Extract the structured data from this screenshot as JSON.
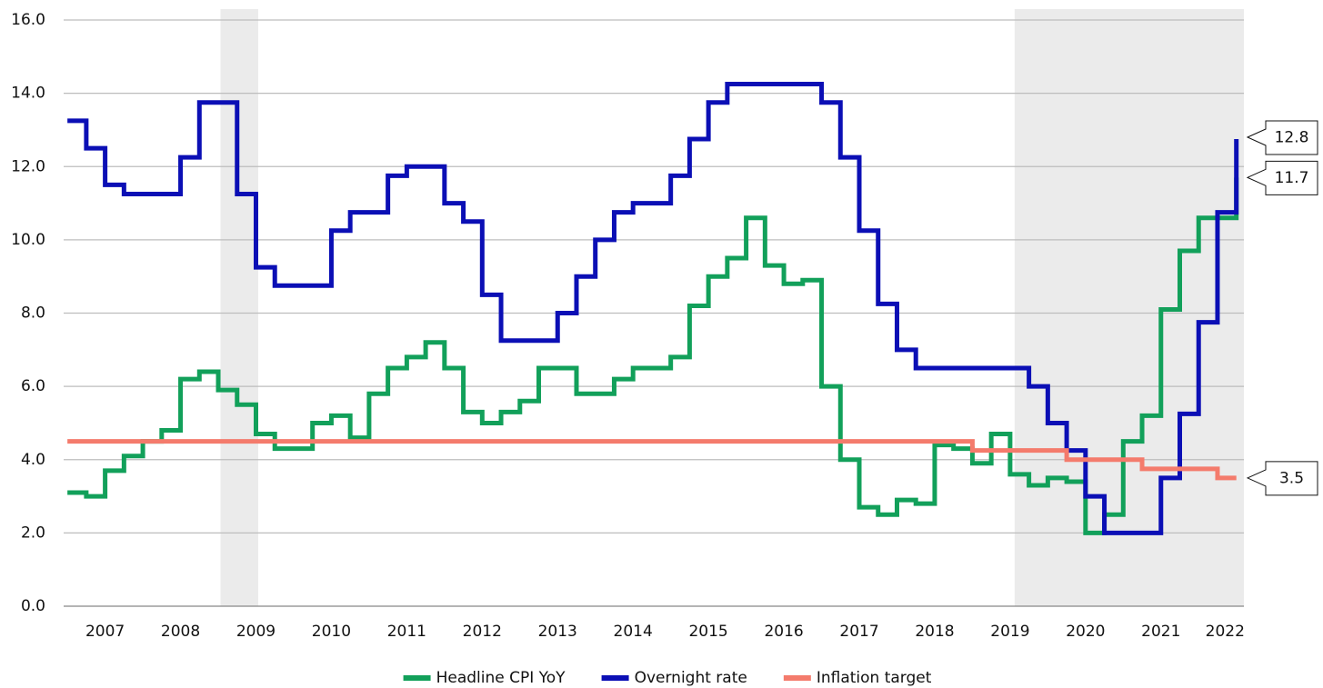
{
  "chart_data": {
    "type": "line",
    "x": [
      2007,
      2007.25,
      2007.5,
      2007.75,
      2008,
      2008.25,
      2008.5,
      2008.75,
      2009,
      2009.25,
      2009.5,
      2009.75,
      2010,
      2010.25,
      2010.5,
      2010.75,
      2011,
      2011.25,
      2011.5,
      2011.75,
      2012,
      2012.25,
      2012.5,
      2012.75,
      2013,
      2013.25,
      2013.5,
      2013.75,
      2014,
      2014.25,
      2014.5,
      2014.75,
      2015,
      2015.25,
      2015.5,
      2015.75,
      2016,
      2016.25,
      2016.5,
      2016.75,
      2017,
      2017.25,
      2017.5,
      2017.75,
      2018,
      2018.25,
      2018.5,
      2018.75,
      2019,
      2019.25,
      2019.5,
      2019.75,
      2020,
      2020.25,
      2020.5,
      2020.75,
      2021,
      2021.25,
      2021.5,
      2021.75,
      2022,
      2022.25,
      2022.5
    ],
    "series": [
      {
        "name": "Headline CPI YoY",
        "color": "#12a05a",
        "values": [
          3.1,
          3.0,
          3.7,
          4.1,
          4.5,
          4.8,
          6.2,
          6.4,
          5.9,
          5.5,
          4.7,
          4.3,
          4.3,
          5.0,
          5.2,
          4.6,
          5.8,
          6.5,
          6.8,
          7.2,
          6.5,
          5.3,
          5.0,
          5.3,
          5.6,
          6.5,
          6.5,
          5.8,
          5.8,
          6.2,
          6.5,
          6.5,
          6.8,
          8.2,
          9.0,
          9.5,
          10.6,
          9.3,
          8.8,
          8.9,
          6.0,
          4.0,
          2.7,
          2.5,
          2.9,
          2.8,
          4.4,
          4.3,
          3.9,
          4.7,
          3.6,
          3.3,
          3.5,
          3.4,
          2.0,
          2.5,
          4.5,
          5.2,
          8.1,
          9.7,
          10.6,
          10.6,
          11.7
        ]
      },
      {
        "name": "Overnight rate",
        "color": "#0b0fb5",
        "values": [
          13.25,
          12.5,
          11.5,
          11.25,
          11.25,
          11.25,
          12.25,
          13.75,
          13.75,
          11.25,
          9.25,
          8.75,
          8.75,
          8.75,
          10.25,
          10.75,
          10.75,
          11.75,
          12.0,
          12.0,
          11.0,
          10.5,
          8.5,
          7.25,
          7.25,
          7.25,
          8.0,
          9.0,
          10.0,
          10.75,
          11.0,
          11.0,
          11.75,
          12.75,
          13.75,
          14.25,
          14.25,
          14.25,
          14.25,
          14.25,
          13.75,
          12.25,
          10.25,
          8.25,
          7.0,
          6.5,
          6.5,
          6.5,
          6.5,
          6.5,
          6.5,
          6.0,
          5.0,
          4.25,
          3.0,
          2.0,
          2.0,
          2.0,
          3.5,
          5.25,
          7.75,
          10.75,
          12.75
        ]
      },
      {
        "name": "Inflation target",
        "color": "#f47b6c",
        "values": [
          4.5,
          4.5,
          4.5,
          4.5,
          4.5,
          4.5,
          4.5,
          4.5,
          4.5,
          4.5,
          4.5,
          4.5,
          4.5,
          4.5,
          4.5,
          4.5,
          4.5,
          4.5,
          4.5,
          4.5,
          4.5,
          4.5,
          4.5,
          4.5,
          4.5,
          4.5,
          4.5,
          4.5,
          4.5,
          4.5,
          4.5,
          4.5,
          4.5,
          4.5,
          4.5,
          4.5,
          4.5,
          4.5,
          4.5,
          4.5,
          4.5,
          4.5,
          4.5,
          4.5,
          4.5,
          4.5,
          4.5,
          4.5,
          4.25,
          4.25,
          4.25,
          4.25,
          4.25,
          4.0,
          4.0,
          4.0,
          4.0,
          3.75,
          3.75,
          3.75,
          3.75,
          3.5,
          3.5
        ]
      }
    ],
    "end_labels": [
      12.8,
      11.7,
      3.5
    ],
    "shaded_regions": [
      [
        2009.03,
        2009.53
      ],
      [
        2019.56,
        2022.6
      ]
    ],
    "xlim": [
      2006.95,
      2022.6
    ],
    "xticks": [
      {
        "value": 2007.5,
        "label": "2007"
      },
      {
        "value": 2008.5,
        "label": "2008"
      },
      {
        "value": 2009.5,
        "label": "2009"
      },
      {
        "value": 2010.5,
        "label": "2010"
      },
      {
        "value": 2011.5,
        "label": "2011"
      },
      {
        "value": 2012.5,
        "label": "2012"
      },
      {
        "value": 2013.5,
        "label": "2013"
      },
      {
        "value": 2014.5,
        "label": "2014"
      },
      {
        "value": 2015.5,
        "label": "2015"
      },
      {
        "value": 2016.5,
        "label": "2016"
      },
      {
        "value": 2017.5,
        "label": "2017"
      },
      {
        "value": 2018.5,
        "label": "2018"
      },
      {
        "value": 2019.5,
        "label": "2019"
      },
      {
        "value": 2020.5,
        "label": "2020"
      },
      {
        "value": 2021.5,
        "label": "2021"
      },
      {
        "value": 2022.35,
        "label": "2022"
      }
    ],
    "ylim": [
      0,
      16
    ],
    "yticks": [
      {
        "value": 0,
        "label": "0.0"
      },
      {
        "value": 2,
        "label": "2.0"
      },
      {
        "value": 4,
        "label": "4.0"
      },
      {
        "value": 6,
        "label": "6.0"
      },
      {
        "value": 8,
        "label": "8.0"
      },
      {
        "value": 10,
        "label": "10.0"
      },
      {
        "value": 12,
        "label": "12.0"
      },
      {
        "value": 14,
        "label": "14.0"
      },
      {
        "value": 16,
        "label": "16.0"
      }
    ],
    "grid": true,
    "step": true,
    "legend": "bottom"
  }
}
